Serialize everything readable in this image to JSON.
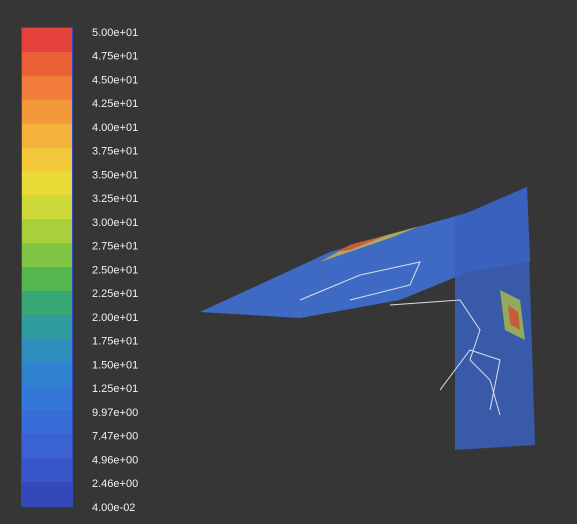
{
  "colorbar": {
    "labels": [
      "5.00e+01",
      "4.75e+01",
      "4.50e+01",
      "4.25e+01",
      "4.00e+01",
      "3.75e+01",
      "3.50e+01",
      "3.25e+01",
      "3.00e+01",
      "2.75e+01",
      "2.50e+01",
      "2.25e+01",
      "2.00e+01",
      "1.75e+01",
      "1.50e+01",
      "1.25e+01",
      "9.97e+00",
      "7.47e+00",
      "4.96e+00",
      "2.46e+00",
      "4.00e-02"
    ],
    "colors": [
      "#e5423b",
      "#ec6038",
      "#f27d3a",
      "#f4983c",
      "#f3b23c",
      "#f2c83a",
      "#eadb38",
      "#cdd83a",
      "#a9cf3d",
      "#80c544",
      "#55b750",
      "#38a874",
      "#2f9b9e",
      "#2e8fbe",
      "#2f82d0",
      "#3477d8",
      "#386cd6",
      "#3a62d1",
      "#3856c8",
      "#3448b9"
    ]
  }
}
